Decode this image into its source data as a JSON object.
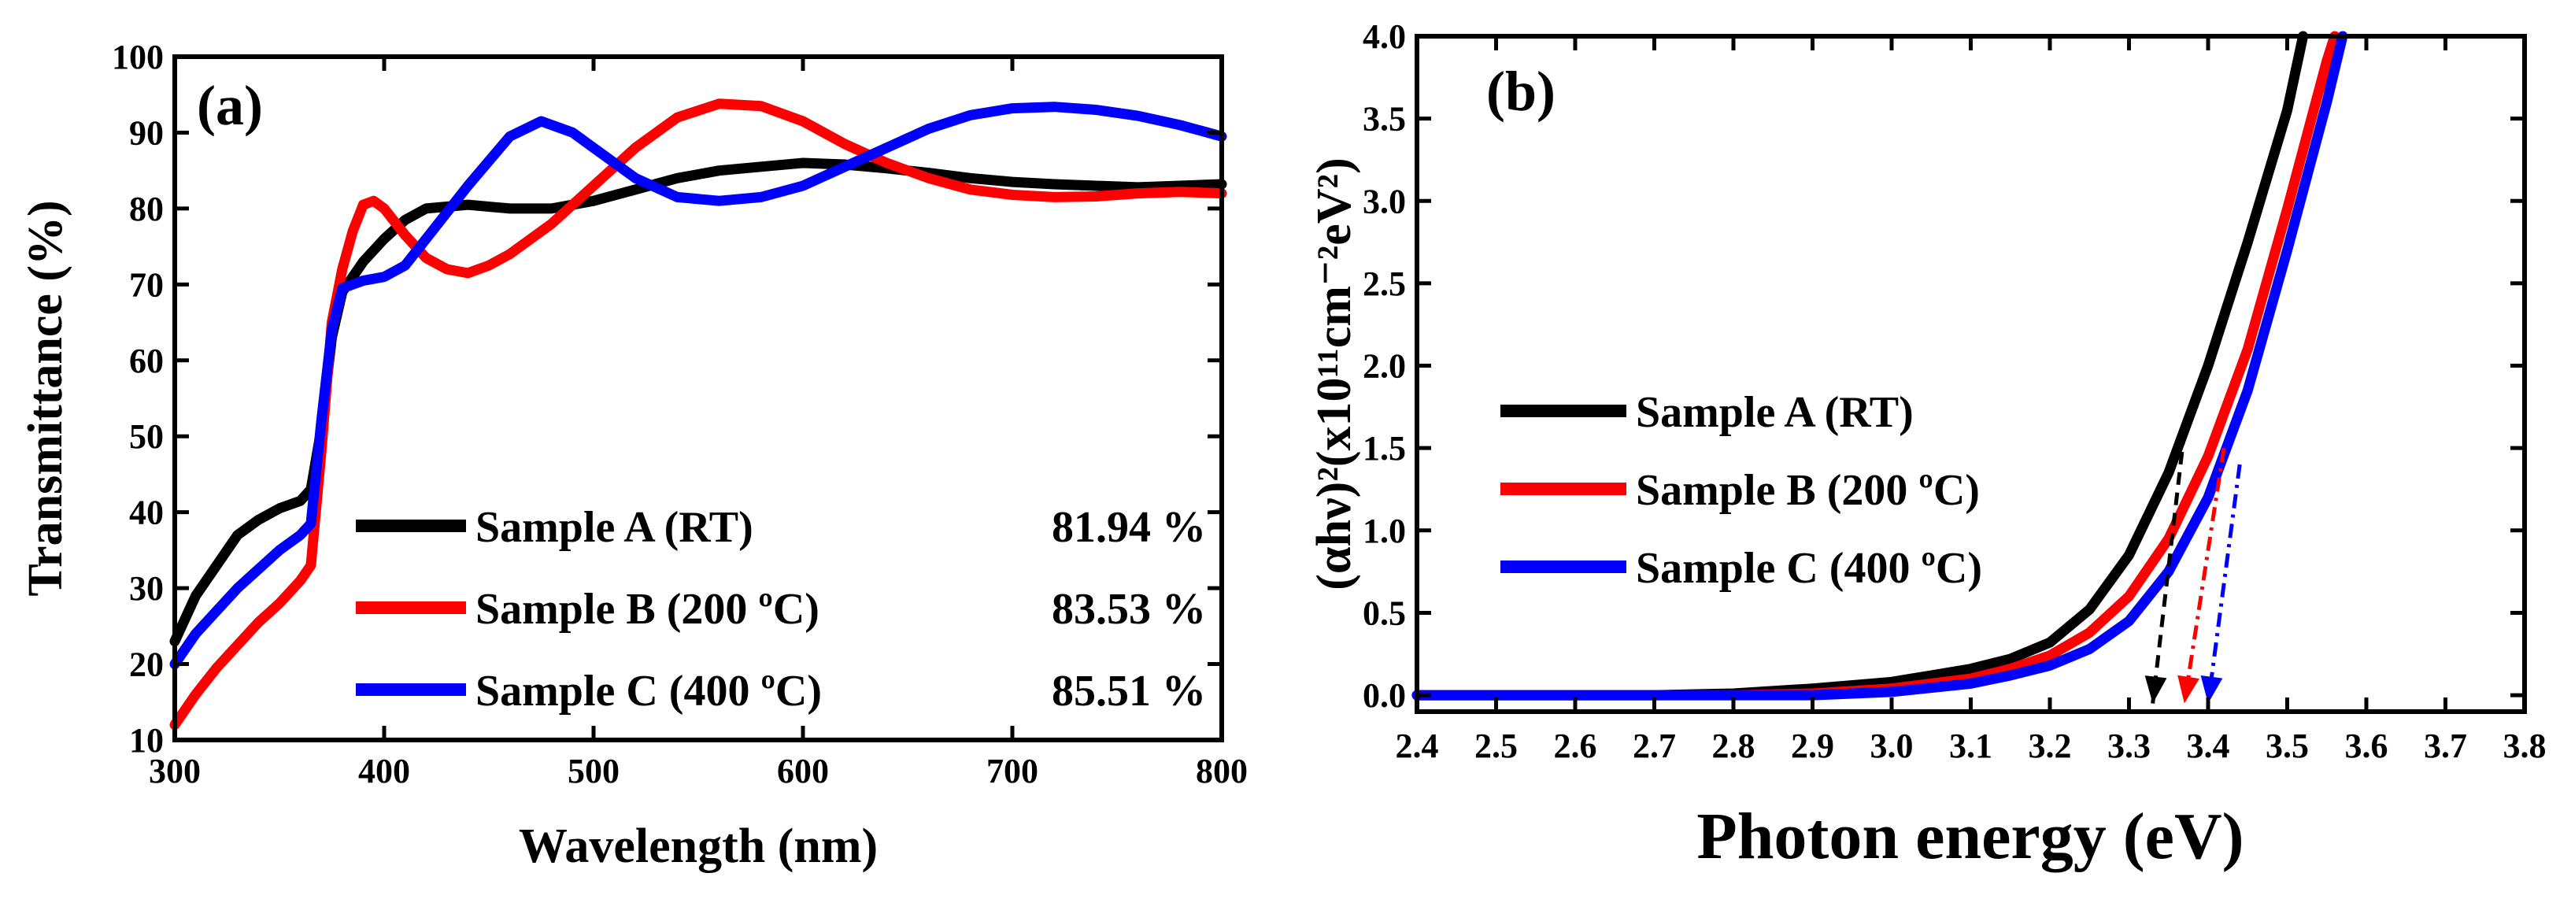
{
  "chart_data": [
    {
      "type": "line",
      "panel_label": "(a)",
      "xlabel": "Wavelength (nm)",
      "ylabel": "Transmittance (%)",
      "xlim": [
        300,
        800
      ],
      "ylim": [
        10,
        100
      ],
      "x_ticks": [
        "300",
        "400",
        "500",
        "600",
        "700",
        "800"
      ],
      "y_ticks": [
        "10",
        "20",
        "30",
        "40",
        "50",
        "60",
        "70",
        "80",
        "90",
        "100"
      ],
      "legend_position": "bottom-right",
      "series": [
        {
          "name": "Sample A (RT)",
          "value_label": "81.94 %",
          "color": "#000000",
          "points": [
            [
              300,
              23
            ],
            [
              310,
              29
            ],
            [
              320,
              33
            ],
            [
              330,
              37
            ],
            [
              340,
              39
            ],
            [
              350,
              40.5
            ],
            [
              360,
              41.5
            ],
            [
              365,
              43
            ],
            [
              370,
              51
            ],
            [
              375,
              63
            ],
            [
              380,
              69
            ],
            [
              390,
              73
            ],
            [
              400,
              76
            ],
            [
              410,
              78.5
            ],
            [
              420,
              80
            ],
            [
              440,
              80.5
            ],
            [
              460,
              80
            ],
            [
              480,
              80
            ],
            [
              500,
              81
            ],
            [
              520,
              82.5
            ],
            [
              540,
              84
            ],
            [
              560,
              85
            ],
            [
              580,
              85.5
            ],
            [
              600,
              86
            ],
            [
              620,
              85.8
            ],
            [
              640,
              85.3
            ],
            [
              660,
              84.7
            ],
            [
              680,
              84
            ],
            [
              700,
              83.5
            ],
            [
              720,
              83.2
            ],
            [
              740,
              83
            ],
            [
              760,
              82.8
            ],
            [
              780,
              83
            ],
            [
              800,
              83.2
            ]
          ]
        },
        {
          "name": "Sample B (200 ºC)",
          "value_label": "83.53 %",
          "color": "#ff0000",
          "points": [
            [
              300,
              12
            ],
            [
              310,
              16
            ],
            [
              320,
              19.5
            ],
            [
              330,
              22.5
            ],
            [
              340,
              25.5
            ],
            [
              350,
              28
            ],
            [
              360,
              31
            ],
            [
              365,
              33
            ],
            [
              370,
              48
            ],
            [
              375,
              65
            ],
            [
              380,
              72
            ],
            [
              385,
              77
            ],
            [
              390,
              80.5
            ],
            [
              395,
              81
            ],
            [
              400,
              80
            ],
            [
              410,
              76.5
            ],
            [
              420,
              73.5
            ],
            [
              430,
              72
            ],
            [
              440,
              71.5
            ],
            [
              450,
              72.5
            ],
            [
              460,
              74
            ],
            [
              480,
              78
            ],
            [
              500,
              83
            ],
            [
              520,
              88
            ],
            [
              540,
              92
            ],
            [
              560,
              93.8
            ],
            [
              580,
              93.5
            ],
            [
              600,
              91.5
            ],
            [
              620,
              88.5
            ],
            [
              640,
              86
            ],
            [
              660,
              84
            ],
            [
              680,
              82.5
            ],
            [
              700,
              81.8
            ],
            [
              720,
              81.5
            ],
            [
              740,
              81.6
            ],
            [
              760,
              82
            ],
            [
              780,
              82.2
            ],
            [
              800,
              82
            ]
          ]
        },
        {
          "name": "Sample C (400 ºC)",
          "value_label": "85.51 %",
          "color": "#0000ff",
          "points": [
            [
              300,
              20
            ],
            [
              310,
              24
            ],
            [
              320,
              27
            ],
            [
              330,
              30
            ],
            [
              340,
              32.5
            ],
            [
              350,
              35
            ],
            [
              360,
              37
            ],
            [
              365,
              38.5
            ],
            [
              370,
              52
            ],
            [
              375,
              64
            ],
            [
              380,
              69.5
            ],
            [
              390,
              70.5
            ],
            [
              400,
              71
            ],
            [
              410,
              72.5
            ],
            [
              420,
              76
            ],
            [
              440,
              83
            ],
            [
              460,
              89.5
            ],
            [
              475,
              91.5
            ],
            [
              490,
              90
            ],
            [
              500,
              88
            ],
            [
              520,
              84
            ],
            [
              540,
              81.5
            ],
            [
              560,
              81
            ],
            [
              580,
              81.5
            ],
            [
              600,
              83
            ],
            [
              620,
              85.5
            ],
            [
              640,
              88
            ],
            [
              660,
              90.5
            ],
            [
              680,
              92.3
            ],
            [
              700,
              93.2
            ],
            [
              720,
              93.4
            ],
            [
              740,
              93
            ],
            [
              760,
              92.2
            ],
            [
              780,
              91
            ],
            [
              800,
              89.5
            ]
          ]
        }
      ]
    },
    {
      "type": "line",
      "panel_label": "(b)",
      "xlabel": "Photon energy (eV)",
      "ylabel": "(αhν)²(x10¹¹cm⁻²eV²)",
      "xlim": [
        2.4,
        3.8
      ],
      "ylim": [
        -0.1,
        4.0
      ],
      "x_ticks": [
        "2.4",
        "2.5",
        "2.6",
        "2.7",
        "2.8",
        "2.9",
        "3.0",
        "3.1",
        "3.2",
        "3.3",
        "3.4",
        "3.5",
        "3.6",
        "3.7",
        "3.8"
      ],
      "y_ticks": [
        "0.0",
        "0.5",
        "1.0",
        "1.5",
        "2.0",
        "2.5",
        "3.0",
        "3.5",
        "4.0"
      ],
      "legend_position": "middle-left",
      "series": [
        {
          "name": "Sample A (RT)",
          "color": "#000000",
          "points": [
            [
              2.4,
              0
            ],
            [
              2.7,
              0
            ],
            [
              2.8,
              0.01
            ],
            [
              2.9,
              0.04
            ],
            [
              3.0,
              0.08
            ],
            [
              3.05,
              0.12
            ],
            [
              3.1,
              0.16
            ],
            [
              3.15,
              0.22
            ],
            [
              3.2,
              0.32
            ],
            [
              3.25,
              0.52
            ],
            [
              3.3,
              0.85
            ],
            [
              3.35,
              1.35
            ],
            [
              3.4,
              2.0
            ],
            [
              3.45,
              2.75
            ],
            [
              3.5,
              3.55
            ],
            [
              3.52,
              4.0
            ]
          ]
        },
        {
          "name": "Sample B (200 ºC)",
          "color": "#ff0000",
          "points": [
            [
              2.4,
              0
            ],
            [
              2.8,
              0
            ],
            [
              2.9,
              0.01
            ],
            [
              3.0,
              0.04
            ],
            [
              3.1,
              0.1
            ],
            [
              3.15,
              0.16
            ],
            [
              3.2,
              0.24
            ],
            [
              3.25,
              0.38
            ],
            [
              3.3,
              0.6
            ],
            [
              3.35,
              0.95
            ],
            [
              3.4,
              1.45
            ],
            [
              3.45,
              2.1
            ],
            [
              3.5,
              2.95
            ],
            [
              3.55,
              3.85
            ],
            [
              3.56,
              4.0
            ]
          ]
        },
        {
          "name": "Sample C (400 ºC)",
          "color": "#0000ff",
          "points": [
            [
              2.4,
              0
            ],
            [
              2.9,
              0
            ],
            [
              3.0,
              0.02
            ],
            [
              3.1,
              0.07
            ],
            [
              3.15,
              0.12
            ],
            [
              3.2,
              0.18
            ],
            [
              3.25,
              0.28
            ],
            [
              3.3,
              0.45
            ],
            [
              3.35,
              0.75
            ],
            [
              3.4,
              1.2
            ],
            [
              3.45,
              1.85
            ],
            [
              3.5,
              2.7
            ],
            [
              3.55,
              3.6
            ],
            [
              3.57,
              4.0
            ]
          ]
        }
      ],
      "extrapolations": [
        {
          "color": "#000000",
          "from": [
            3.37,
            1.6
          ],
          "to": [
            3.33,
            -0.05
          ],
          "style": "dash"
        },
        {
          "color": "#ff0000",
          "from": [
            3.42,
            1.5
          ],
          "to": [
            3.37,
            -0.05
          ],
          "style": "dash-dot"
        },
        {
          "color": "#0000ff",
          "from": [
            3.44,
            1.4
          ],
          "to": [
            3.4,
            -0.05
          ],
          "style": "dash-dot"
        }
      ]
    }
  ]
}
